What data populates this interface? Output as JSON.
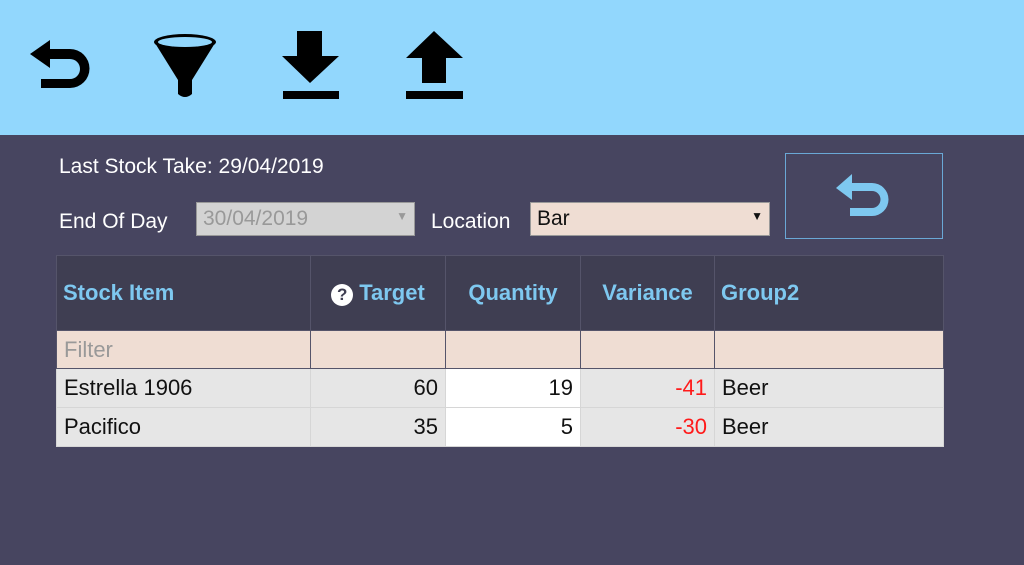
{
  "toolbar": {
    "icons": [
      "undo-icon",
      "filter-icon",
      "download-icon",
      "upload-icon"
    ]
  },
  "header": {
    "last_stock_take": "Last Stock Take: 29/04/2019",
    "end_of_day_label": "End Of Day",
    "end_of_day_value": "30/04/2019",
    "location_label": "Location",
    "location_value": "Bar"
  },
  "table": {
    "columns": [
      "Stock Item",
      "Target",
      "Quantity",
      "Variance",
      "Group2"
    ],
    "filter_placeholder": "Filter",
    "rows": [
      {
        "item": "Estrella 1906",
        "target": "60",
        "quantity": "19",
        "variance": "-41",
        "group": "Beer"
      },
      {
        "item": "Pacifico",
        "target": "35",
        "quantity": "5",
        "variance": "-30",
        "group": "Beer"
      }
    ]
  },
  "colors": {
    "toolbar": "#92d7fd",
    "background": "#474560",
    "header_text": "#7ec8f0",
    "negative": "#ff1a1a",
    "filter_bg": "#efddd3"
  }
}
